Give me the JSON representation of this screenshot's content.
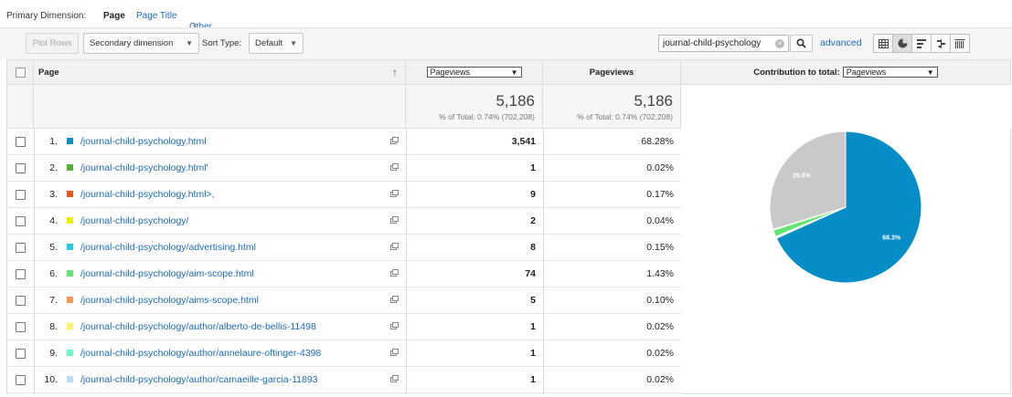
{
  "dimensions": {
    "label": "Primary Dimension:",
    "active": "Page",
    "options": [
      "Page Title",
      "Other"
    ]
  },
  "toolbar": {
    "plot_rows": "Plot Rows",
    "secondary_dimension": "Secondary dimension",
    "sort_type_label": "Sort Type:",
    "sort_type_value": "Default",
    "search_value": "journal-child-psychology",
    "advanced_label": "advanced",
    "view_icons": [
      "data-table-icon",
      "pie-chart-icon",
      "performance-icon",
      "comparison-icon",
      "term-cloud-icon"
    ],
    "active_view": "pie-chart-icon"
  },
  "table": {
    "headers": {
      "page": "Page",
      "metric_select": "Pageviews",
      "pageviews": "Pageviews",
      "contribution": "Contribution to total:",
      "contribution_select": "Pageviews"
    },
    "totals": {
      "select_total": "5,186",
      "select_pct": "% of Total: 0.74% (702,208)",
      "pv_total": "5,186",
      "pv_pct": "% of Total: 0.74% (702,208)"
    },
    "rows": [
      {
        "num": "1.",
        "page": "/journal-child-psychology.html",
        "value": "3,541",
        "pct": "68.28%",
        "color": "#058dc7"
      },
      {
        "num": "2.",
        "page": "/journal-child-psychology.html'",
        "value": "1",
        "pct": "0.02%",
        "color": "#50b432"
      },
      {
        "num": "3.",
        "page": "/journal-child-psychology.html>,",
        "value": "9",
        "pct": "0.17%",
        "color": "#ed561b"
      },
      {
        "num": "4.",
        "page": "/journal-child-psychology/",
        "value": "2",
        "pct": "0.04%",
        "color": "#edef00"
      },
      {
        "num": "5.",
        "page": "/journal-child-psychology/advertising.html",
        "value": "8",
        "pct": "0.15%",
        "color": "#24cbe5"
      },
      {
        "num": "6.",
        "page": "/journal-child-psychology/aim-scope.html",
        "value": "74",
        "pct": "1.43%",
        "color": "#64e572"
      },
      {
        "num": "7.",
        "page": "/journal-child-psychology/aims-scope.html",
        "value": "5",
        "pct": "0.10%",
        "color": "#ff9655"
      },
      {
        "num": "8.",
        "page": "/journal-child-psychology/author/alberto-de-bellis-11498",
        "value": "1",
        "pct": "0.02%",
        "color": "#fff263"
      },
      {
        "num": "9.",
        "page": "/journal-child-psychology/author/annelaure-oftinger-4398",
        "value": "1",
        "pct": "0.02%",
        "color": "#6af9c4"
      },
      {
        "num": "10.",
        "page": "/journal-child-psychology/author/camaeille-garcia-11893",
        "value": "1",
        "pct": "0.02%",
        "color": "#b2deff"
      }
    ]
  },
  "chart_data": {
    "type": "pie",
    "slices": [
      {
        "value": 68.28,
        "color": "#058dc7",
        "label": "68.3%"
      },
      {
        "value": 0.02,
        "color": "#50b432"
      },
      {
        "value": 0.17,
        "color": "#ed561b"
      },
      {
        "value": 0.04,
        "color": "#edef00"
      },
      {
        "value": 0.15,
        "color": "#24cbe5"
      },
      {
        "value": 1.43,
        "color": "#64e572"
      },
      {
        "value": 0.1,
        "color": "#ff9655"
      },
      {
        "value": 0.02,
        "color": "#fff263"
      },
      {
        "value": 0.02,
        "color": "#6af9c4"
      },
      {
        "value": 0.02,
        "color": "#b2deff"
      },
      {
        "value": 29.75,
        "color": "#c9c9c9",
        "label": "29.8%"
      }
    ]
  }
}
